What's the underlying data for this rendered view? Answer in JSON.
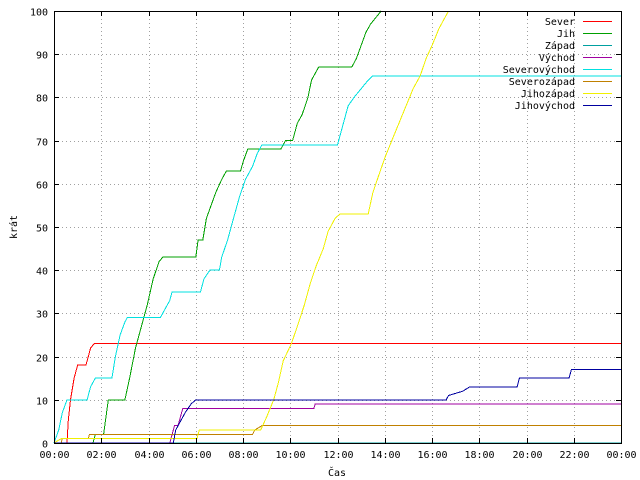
{
  "chart_data": {
    "type": "line",
    "title": "",
    "xlabel": "Čas",
    "ylabel": "krát",
    "xlim": [
      0,
      24
    ],
    "ylim": [
      0,
      100
    ],
    "x_ticks": [
      {
        "value": 0,
        "label": "00:00"
      },
      {
        "value": 2,
        "label": "02:00"
      },
      {
        "value": 4,
        "label": "04:00"
      },
      {
        "value": 6,
        "label": "06:00"
      },
      {
        "value": 8,
        "label": "08:00"
      },
      {
        "value": 10,
        "label": "10:00"
      },
      {
        "value": 12,
        "label": "12:00"
      },
      {
        "value": 14,
        "label": "14:00"
      },
      {
        "value": 16,
        "label": "16:00"
      },
      {
        "value": 18,
        "label": "18:00"
      },
      {
        "value": 20,
        "label": "20:00"
      },
      {
        "value": 22,
        "label": "22:00"
      },
      {
        "value": 24,
        "label": "00:00"
      }
    ],
    "y_ticks": [
      0,
      10,
      20,
      30,
      40,
      50,
      60,
      70,
      80,
      90,
      100
    ],
    "grid": true,
    "legend_position": "top-right",
    "series": [
      {
        "name": "Sever",
        "color": "#ff0000",
        "points": [
          [
            0,
            0
          ],
          [
            0.55,
            0
          ],
          [
            0.6,
            5
          ],
          [
            0.7,
            10
          ],
          [
            0.85,
            15
          ],
          [
            1.0,
            18
          ],
          [
            1.35,
            18
          ],
          [
            1.45,
            20
          ],
          [
            1.55,
            22
          ],
          [
            1.7,
            23
          ],
          [
            24,
            23
          ]
        ]
      },
      {
        "name": "Jih",
        "color": "#00a000",
        "points": [
          [
            0,
            0
          ],
          [
            1.65,
            0
          ],
          [
            1.75,
            2
          ],
          [
            2.1,
            2
          ],
          [
            2.3,
            10
          ],
          [
            3.0,
            10
          ],
          [
            3.2,
            15
          ],
          [
            3.45,
            22
          ],
          [
            3.7,
            27
          ],
          [
            3.95,
            32
          ],
          [
            4.2,
            38
          ],
          [
            4.45,
            42
          ],
          [
            4.6,
            43
          ],
          [
            6.0,
            43
          ],
          [
            6.1,
            47
          ],
          [
            6.3,
            47
          ],
          [
            6.45,
            52
          ],
          [
            6.65,
            55
          ],
          [
            6.85,
            58
          ],
          [
            7.1,
            61
          ],
          [
            7.3,
            63
          ],
          [
            7.9,
            63
          ],
          [
            8.0,
            65
          ],
          [
            8.2,
            68
          ],
          [
            9.6,
            68
          ],
          [
            9.8,
            70
          ],
          [
            10.1,
            70
          ],
          [
            10.3,
            74
          ],
          [
            10.5,
            76
          ],
          [
            10.75,
            80
          ],
          [
            10.9,
            84
          ],
          [
            11.2,
            87
          ],
          [
            12.6,
            87
          ],
          [
            12.8,
            89
          ],
          [
            13.0,
            92
          ],
          [
            13.2,
            95
          ],
          [
            13.4,
            97
          ],
          [
            13.7,
            99
          ],
          [
            13.85,
            100
          ]
        ]
      },
      {
        "name": "Západ",
        "color": "#00a0a0",
        "points": [
          [
            0,
            0
          ],
          [
            24,
            0
          ]
        ]
      },
      {
        "name": "Východ",
        "color": "#a000a0",
        "points": [
          [
            0,
            0
          ],
          [
            4.9,
            0
          ],
          [
            5.1,
            4
          ],
          [
            5.25,
            4
          ],
          [
            5.45,
            8
          ],
          [
            6.0,
            8
          ],
          [
            6.05,
            8
          ],
          [
            9.7,
            8
          ],
          [
            11.0,
            8
          ],
          [
            11.05,
            9
          ],
          [
            24,
            9
          ]
        ]
      },
      {
        "name": "Severovýchod",
        "color": "#00e0e0",
        "points": [
          [
            0,
            0
          ],
          [
            0.2,
            3
          ],
          [
            0.35,
            7
          ],
          [
            0.55,
            10
          ],
          [
            1.4,
            10
          ],
          [
            1.55,
            13
          ],
          [
            1.75,
            15
          ],
          [
            2.45,
            15
          ],
          [
            2.6,
            20
          ],
          [
            2.8,
            25
          ],
          [
            3.0,
            28
          ],
          [
            3.1,
            29
          ],
          [
            4.5,
            29
          ],
          [
            4.7,
            31
          ],
          [
            4.9,
            33
          ],
          [
            5.0,
            35
          ],
          [
            6.2,
            35
          ],
          [
            6.35,
            38
          ],
          [
            6.6,
            40
          ],
          [
            7.0,
            40
          ],
          [
            7.1,
            43
          ],
          [
            7.35,
            47
          ],
          [
            7.6,
            52
          ],
          [
            7.85,
            57
          ],
          [
            8.1,
            61
          ],
          [
            8.4,
            64
          ],
          [
            8.6,
            67
          ],
          [
            8.8,
            69
          ],
          [
            12.0,
            69
          ],
          [
            12.2,
            73
          ],
          [
            12.45,
            78
          ],
          [
            12.7,
            80
          ],
          [
            13.0,
            82
          ],
          [
            13.3,
            84
          ],
          [
            13.5,
            85
          ],
          [
            24,
            85
          ]
        ]
      },
      {
        "name": "Severozápad",
        "color": "#c08000",
        "points": [
          [
            0,
            0
          ],
          [
            0.3,
            0
          ],
          [
            0.35,
            1
          ],
          [
            1.45,
            1
          ],
          [
            1.5,
            2
          ],
          [
            4.95,
            2
          ],
          [
            5.0,
            2
          ],
          [
            8.4,
            2
          ],
          [
            8.5,
            3
          ],
          [
            8.8,
            4
          ],
          [
            24,
            4
          ]
        ]
      },
      {
        "name": "Jihozápad",
        "color": "#f0f000",
        "points": [
          [
            0,
            0
          ],
          [
            0.3,
            1
          ],
          [
            6.05,
            1
          ],
          [
            6.15,
            3
          ],
          [
            8.75,
            3
          ],
          [
            9.0,
            6
          ],
          [
            9.3,
            10
          ],
          [
            9.5,
            14
          ],
          [
            9.7,
            19
          ],
          [
            10.05,
            23
          ],
          [
            10.3,
            27
          ],
          [
            10.6,
            32
          ],
          [
            10.85,
            37
          ],
          [
            11.1,
            41
          ],
          [
            11.4,
            45
          ],
          [
            11.6,
            49
          ],
          [
            11.9,
            52
          ],
          [
            12.1,
            53
          ],
          [
            13.3,
            53
          ],
          [
            13.5,
            58
          ],
          [
            13.75,
            62
          ],
          [
            14.0,
            66
          ],
          [
            14.3,
            70
          ],
          [
            14.6,
            74
          ],
          [
            14.9,
            78
          ],
          [
            15.2,
            82
          ],
          [
            15.5,
            85
          ],
          [
            15.75,
            89
          ],
          [
            16.0,
            92
          ],
          [
            16.3,
            96
          ],
          [
            16.6,
            99
          ],
          [
            16.7,
            100
          ]
        ]
      },
      {
        "name": "Jihovýchod",
        "color": "#0000a0",
        "points": [
          [
            0,
            0
          ],
          [
            5.05,
            0
          ],
          [
            5.15,
            3
          ],
          [
            5.35,
            5
          ],
          [
            5.55,
            7
          ],
          [
            5.8,
            9
          ],
          [
            6.0,
            10
          ],
          [
            16.6,
            10
          ],
          [
            16.7,
            11
          ],
          [
            17.3,
            12
          ],
          [
            17.6,
            13
          ],
          [
            19.6,
            13
          ],
          [
            19.7,
            15
          ],
          [
            21.8,
            15
          ],
          [
            21.9,
            17
          ],
          [
            24,
            17
          ]
        ]
      }
    ]
  }
}
